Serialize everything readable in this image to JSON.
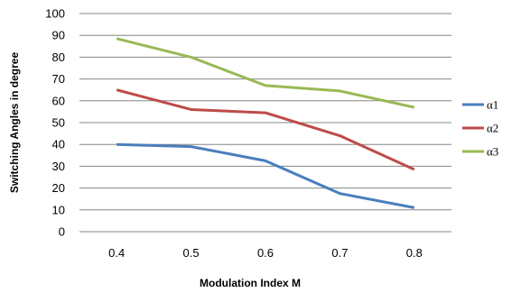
{
  "chart_data": {
    "type": "line",
    "title": "",
    "xlabel": "Modulation Index M",
    "ylabel": "Switching Angles in degree",
    "categories": [
      "0.4",
      "0.5",
      "0.6",
      "0.7",
      "0.8"
    ],
    "yticks": [
      "0",
      "10",
      "20",
      "30",
      "40",
      "50",
      "60",
      "70",
      "80",
      "90",
      "100"
    ],
    "ylim": [
      0,
      100
    ],
    "grid": true,
    "legend_position": "right",
    "series": [
      {
        "name": "α1",
        "color": "#4a7ebb",
        "values": [
          40,
          39,
          32.5,
          17.5,
          11
        ]
      },
      {
        "name": "α2",
        "color": "#be4b48",
        "values": [
          65,
          56,
          54.5,
          44,
          28.5
        ]
      },
      {
        "name": "α3",
        "color": "#98b954",
        "values": [
          88.5,
          80,
          67,
          64.5,
          57
        ]
      }
    ]
  }
}
